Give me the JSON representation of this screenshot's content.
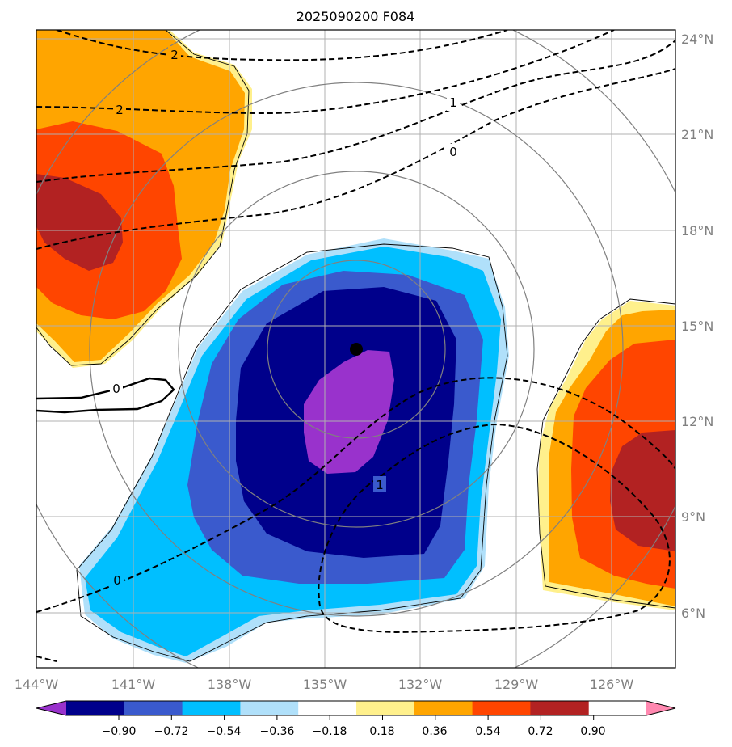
{
  "chart_data": {
    "type": "contour-map",
    "title": "2025090200 F084",
    "x_ticks": [
      "144°W",
      "141°W",
      "138°W",
      "135°W",
      "132°W",
      "129°W",
      "126°W"
    ],
    "y_ticks": [
      "24°N",
      "21°N",
      "18°N",
      "15°N",
      "12°N",
      "9°N",
      "6°N"
    ],
    "lon_range": [
      -144,
      -124
    ],
    "lat_range": [
      4,
      24
    ],
    "storm_center": {
      "lon": -134,
      "lat": 14.3
    },
    "range_rings_deg": [
      2.75,
      5.5,
      8,
      10.5
    ],
    "colorbar": {
      "ticks": [
        "−0.90",
        "−0.72",
        "−0.54",
        "−0.36",
        "−0.18",
        "0.18",
        "0.36",
        "0.54",
        "0.72",
        "0.90"
      ],
      "colors": [
        "#9932cc",
        "#00008b",
        "#3a5acd",
        "#00bfff",
        "#b0e0fa",
        "#ffffff",
        "#fff08c",
        "#ffa500",
        "#ff4500",
        "#b22222",
        "#ff88b0"
      ],
      "extend": "both"
    },
    "contour_labels": [
      "2",
      "2",
      "1",
      "0",
      "0",
      "0",
      "1"
    ],
    "solid_contour_label": "0",
    "contour_style": {
      "dashed_color": "#000000",
      "solid_color": "#000000"
    }
  }
}
